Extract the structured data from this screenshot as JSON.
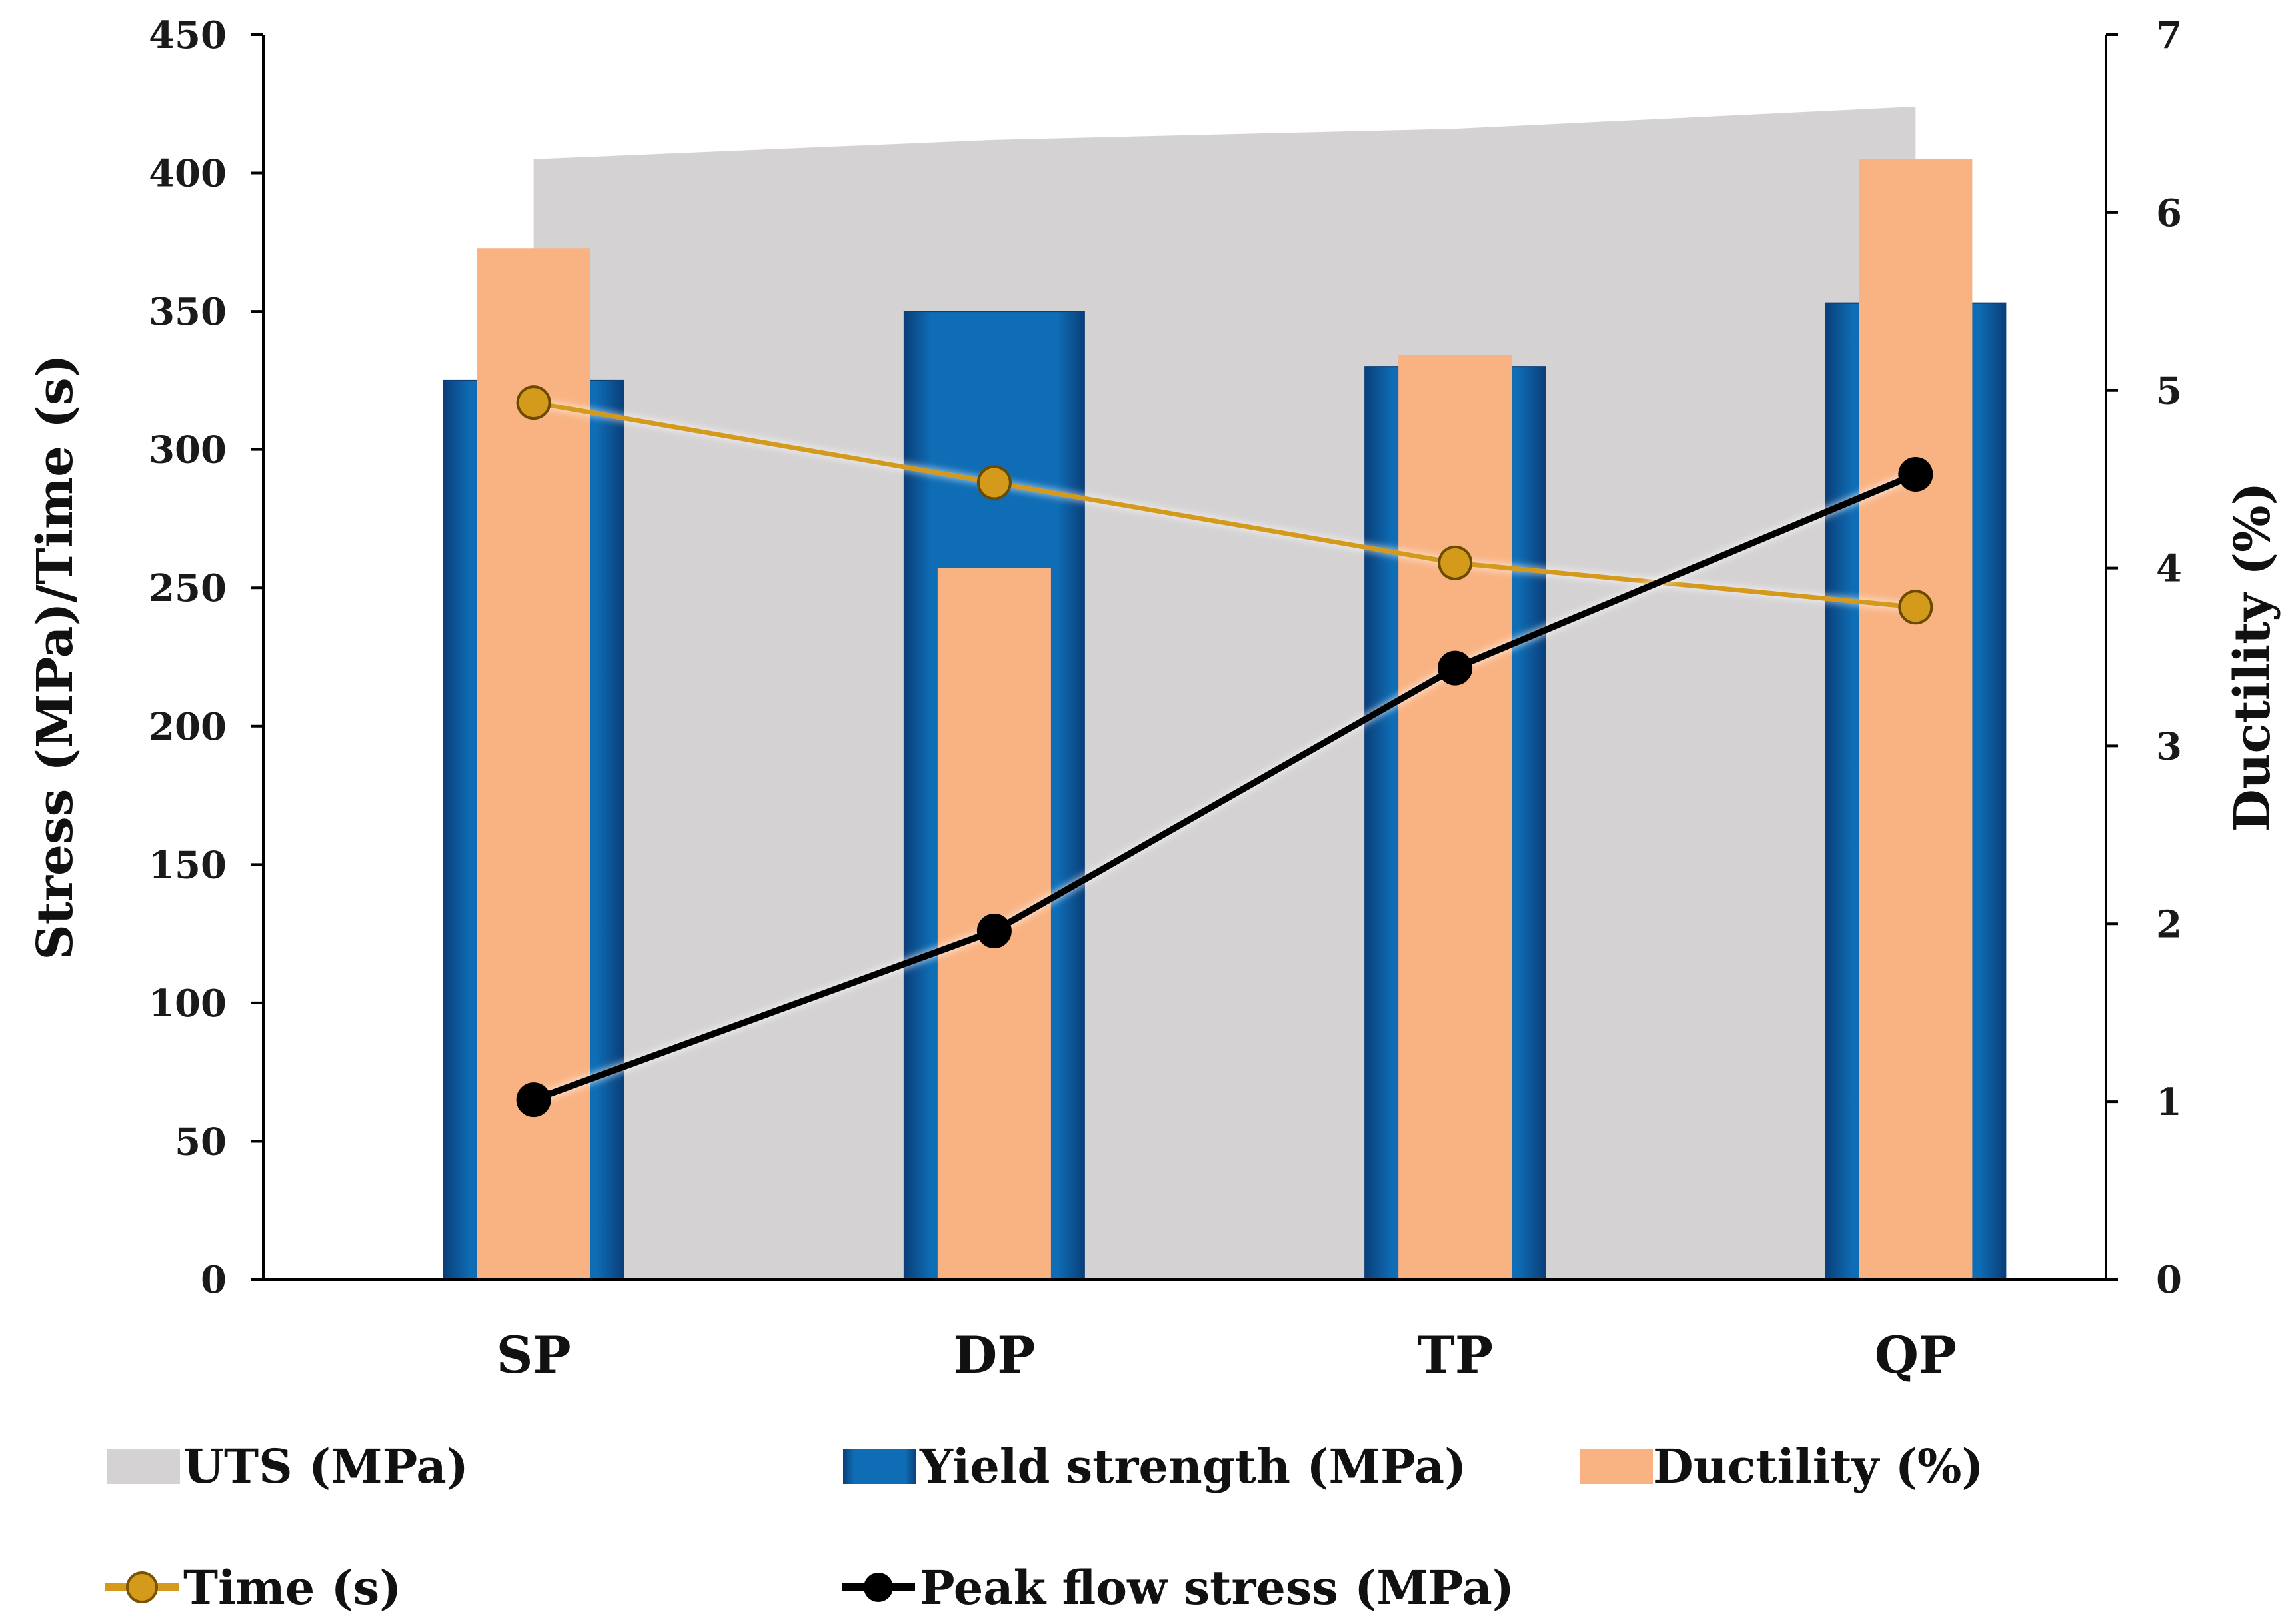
{
  "chart_data": {
    "type": "bar",
    "categories": [
      "SP",
      "DP",
      "TP",
      "QP"
    ],
    "y_left": {
      "label": "Stress (MPa)/Time (s)",
      "range": [
        0,
        450
      ],
      "ticks": [
        "0",
        "50",
        "100",
        "150",
        "200",
        "250",
        "300",
        "350",
        "400",
        "450"
      ]
    },
    "y_right": {
      "label": "Ductility (%)",
      "range": [
        0,
        7
      ],
      "ticks": [
        "0",
        "1",
        "2",
        "3",
        "4",
        "5",
        "6",
        "7"
      ]
    },
    "series": [
      {
        "name": "UTS (MPa)",
        "kind": "area",
        "axis": "left",
        "values": [
          405,
          412,
          416,
          424
        ]
      },
      {
        "name": "Yield strength (MPa)",
        "kind": "bar",
        "axis": "left",
        "values": [
          325,
          350,
          330,
          353
        ]
      },
      {
        "name": "Ductility (%)",
        "kind": "bar",
        "axis": "right",
        "values": [
          5.8,
          4.0,
          5.2,
          6.3
        ]
      },
      {
        "name": "Time (s)",
        "kind": "line",
        "axis": "left",
        "values": [
          317,
          288,
          259,
          243
        ]
      },
      {
        "name": "Peak flow stress (MPa)",
        "kind": "line",
        "axis": "left",
        "values": [
          65,
          126,
          221,
          291
        ]
      }
    ],
    "colors": {
      "UTS (MPa)": "#d5d2d3",
      "Yield strength (MPa)": "#0e6db5",
      "Ductility (%)": "#f9b383",
      "Time (s)": "#d49a1c",
      "Peak flow stress (MPa)": "#000000"
    },
    "legend_position": "bottom"
  }
}
